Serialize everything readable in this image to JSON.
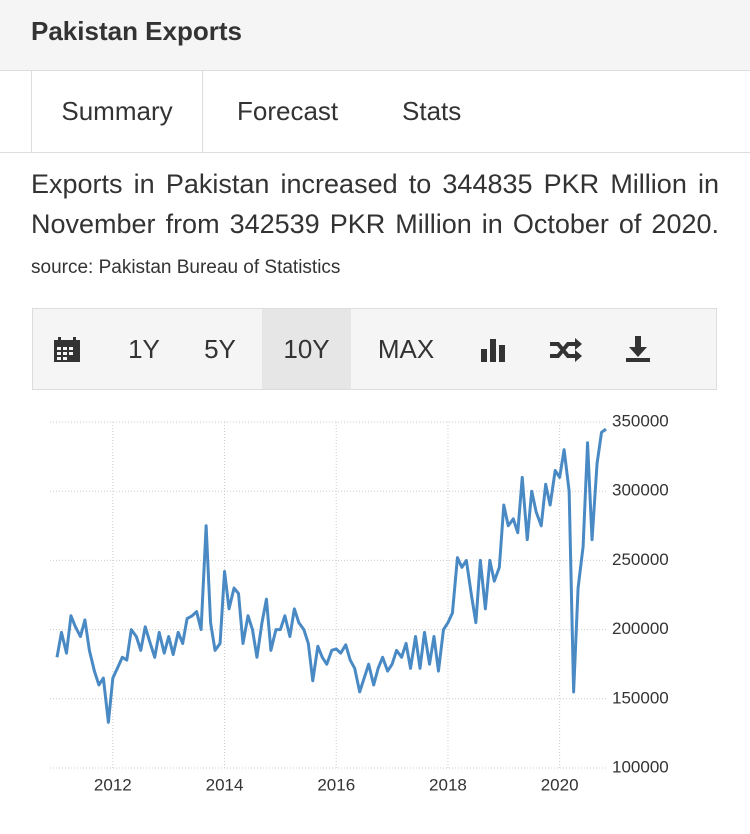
{
  "header": {
    "title": "Pakistan Exports"
  },
  "tabs": [
    "Summary",
    "Forecast",
    "Stats"
  ],
  "description": "Exports in Pakistan increased to 344835 PKR Million in November from 342539 PKR Million in October of 2020.",
  "source": "source: Pakistan Bureau of Statistics",
  "toolbar": [
    "1Y",
    "5Y",
    "10Y",
    "MAX"
  ],
  "chart_data": {
    "type": "line",
    "color": "#4a8ac4",
    "grid": true,
    "x": [
      2011,
      2011.08,
      2011.17,
      2011.25,
      2011.33,
      2011.42,
      2011.5,
      2011.58,
      2011.67,
      2011.75,
      2011.83,
      2011.92,
      2012,
      2012.08,
      2012.17,
      2012.25,
      2012.33,
      2012.42,
      2012.5,
      2012.58,
      2012.67,
      2012.75,
      2012.83,
      2012.92,
      2013,
      2013.08,
      2013.17,
      2013.25,
      2013.33,
      2013.42,
      2013.5,
      2013.58,
      2013.67,
      2013.75,
      2013.83,
      2013.92,
      2014,
      2014.08,
      2014.17,
      2014.25,
      2014.33,
      2014.42,
      2014.5,
      2014.58,
      2014.67,
      2014.75,
      2014.83,
      2014.92,
      2015,
      2015.08,
      2015.17,
      2015.25,
      2015.33,
      2015.42,
      2015.5,
      2015.58,
      2015.67,
      2015.75,
      2015.83,
      2015.92,
      2016,
      2016.08,
      2016.17,
      2016.25,
      2016.33,
      2016.42,
      2016.5,
      2016.58,
      2016.67,
      2016.75,
      2016.83,
      2016.92,
      2017,
      2017.08,
      2017.17,
      2017.25,
      2017.33,
      2017.42,
      2017.5,
      2017.58,
      2017.67,
      2017.75,
      2017.83,
      2017.92,
      2018,
      2018.08,
      2018.17,
      2018.25,
      2018.33,
      2018.42,
      2018.5,
      2018.58,
      2018.67,
      2018.75,
      2018.83,
      2018.92,
      2019,
      2019.08,
      2019.17,
      2019.25,
      2019.33,
      2019.42,
      2019.5,
      2019.58,
      2019.67,
      2019.75,
      2019.83,
      2019.92,
      2020,
      2020.08,
      2020.17,
      2020.25,
      2020.33,
      2020.42,
      2020.5,
      2020.58,
      2020.67,
      2020.75,
      2020.83
    ],
    "values": [
      180000,
      198000,
      183000,
      210000,
      202000,
      195000,
      207000,
      185000,
      170000,
      160000,
      165000,
      133000,
      165000,
      172000,
      180000,
      178000,
      200000,
      195000,
      185000,
      202000,
      190000,
      180000,
      198000,
      183000,
      195000,
      182000,
      198000,
      190000,
      208000,
      210000,
      213000,
      200000,
      275000,
      205000,
      185000,
      190000,
      242000,
      215000,
      230000,
      226000,
      190000,
      210000,
      200000,
      180000,
      205000,
      222000,
      185000,
      200000,
      200000,
      210000,
      195000,
      215000,
      205000,
      200000,
      190000,
      163000,
      188000,
      180000,
      175000,
      185000,
      186000,
      183000,
      189000,
      178000,
      172000,
      155000,
      165000,
      175000,
      160000,
      172000,
      180000,
      170000,
      175000,
      185000,
      180000,
      190000,
      172000,
      195000,
      172000,
      198000,
      175000,
      195000,
      170000,
      200000,
      205000,
      212000,
      252000,
      245000,
      250000,
      225000,
      205000,
      250000,
      215000,
      250000,
      235000,
      245000,
      290000,
      275000,
      280000,
      270000,
      310000,
      265000,
      300000,
      285000,
      275000,
      305000,
      290000,
      315000,
      310000,
      330000,
      300000,
      155000,
      230000,
      260000,
      335000,
      265000,
      320000,
      342539,
      344835
    ],
    "xlim": [
      2011,
      2020.83
    ],
    "xticks": [
      2012,
      2014,
      2016,
      2018,
      2020
    ],
    "ylim": [
      100000,
      350000
    ],
    "yticks": [
      350000,
      300000,
      250000,
      200000,
      150000,
      100000
    ]
  }
}
